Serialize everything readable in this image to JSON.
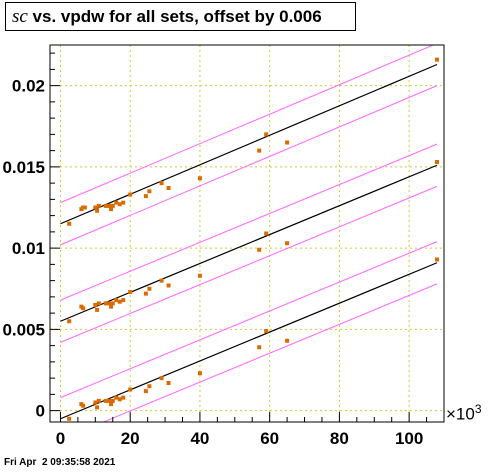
{
  "title": {
    "symbol": "sc",
    "rest": " vs. vpdw for all sets, offset by 0.006"
  },
  "footer": "Fri Apr  2 09:35:58 2021",
  "x_axis_multiplier_base": "×10",
  "x_axis_multiplier_exp": "3",
  "colors": {
    "points": "#d96b00",
    "fit": "#000000",
    "band": "#ff66ff",
    "grid": "#cccc33"
  },
  "chart_data": {
    "type": "scatter",
    "title": "sc vs. vpdw for all sets, offset by 0.006",
    "xlabel": "",
    "ylabel": "",
    "xlim": [
      -3,
      110
    ],
    "ylim": [
      -0.0007,
      0.0225
    ],
    "x_ticks": [
      0,
      20,
      40,
      60,
      80,
      100
    ],
    "x_tick_labels": [
      "0",
      "20",
      "40",
      "60",
      "80",
      "100"
    ],
    "y_ticks": [
      0,
      0.005,
      0.01,
      0.015,
      0.02
    ],
    "y_tick_labels": [
      "0",
      "0.005",
      "0.01",
      "0.015",
      "0.02"
    ],
    "grid": true,
    "x_multiplier": "×10^3",
    "series": [
      {
        "offset": 0,
        "points": [
          [
            2.5,
            -0.0005
          ],
          [
            6,
            0.0004
          ],
          [
            6.5,
            0.0003
          ],
          [
            10,
            0.0005
          ],
          [
            10.5,
            0.0002
          ],
          [
            11,
            0.0006
          ],
          [
            13,
            0.0006
          ],
          [
            14,
            0.0006
          ],
          [
            14.5,
            0.0004
          ],
          [
            15,
            0.0006
          ],
          [
            16,
            0.0008
          ],
          [
            17,
            0.0007
          ],
          [
            18,
            0.0008
          ],
          [
            20,
            0.0013
          ],
          [
            24.5,
            0.0012
          ],
          [
            25.5,
            0.0015
          ],
          [
            29,
            0.002
          ],
          [
            31,
            0.0017
          ],
          [
            40,
            0.0023
          ],
          [
            57,
            0.0039
          ],
          [
            59,
            0.0049
          ],
          [
            65,
            0.0043
          ],
          [
            108,
            0.0093
          ]
        ],
        "fit": {
          "x0": 0,
          "y0": -0.0005,
          "x1": 108,
          "y1": 0.0091
        },
        "band_upper": {
          "x0": 0,
          "y0": 0.0008,
          "x1": 108,
          "y1": 0.0104
        },
        "band_lower": {
          "x0": 0,
          "y0": -0.0018,
          "x1": 108,
          "y1": 0.0078
        }
      },
      {
        "offset": 0.006,
        "points": [
          [
            2.5,
            0.0055
          ],
          [
            6,
            0.0064
          ],
          [
            6.5,
            0.0063
          ],
          [
            10,
            0.0065
          ],
          [
            10.5,
            0.0062
          ],
          [
            11,
            0.0066
          ],
          [
            13,
            0.0066
          ],
          [
            14,
            0.0066
          ],
          [
            14.5,
            0.0064
          ],
          [
            15,
            0.0066
          ],
          [
            16,
            0.0068
          ],
          [
            17,
            0.0067
          ],
          [
            18,
            0.0068
          ],
          [
            20,
            0.0073
          ],
          [
            24.5,
            0.0072
          ],
          [
            25.5,
            0.0075
          ],
          [
            29,
            0.008
          ],
          [
            31,
            0.0077
          ],
          [
            40,
            0.0083
          ],
          [
            57,
            0.0099
          ],
          [
            59,
            0.0109
          ],
          [
            65,
            0.0103
          ],
          [
            108,
            0.0153
          ]
        ],
        "fit": {
          "x0": 0,
          "y0": 0.0055,
          "x1": 108,
          "y1": 0.0151
        },
        "band_upper": {
          "x0": 0,
          "y0": 0.0068,
          "x1": 108,
          "y1": 0.0164
        },
        "band_lower": {
          "x0": 0,
          "y0": 0.0042,
          "x1": 108,
          "y1": 0.0138
        }
      },
      {
        "offset": 0.012,
        "points": [
          [
            2.5,
            0.0115
          ],
          [
            6,
            0.0124
          ],
          [
            6.5,
            0.0125
          ],
          [
            7,
            0.0125
          ],
          [
            10,
            0.0125
          ],
          [
            10.5,
            0.0123
          ],
          [
            11,
            0.0126
          ],
          [
            13,
            0.0126
          ],
          [
            14,
            0.0126
          ],
          [
            14.5,
            0.0124
          ],
          [
            15,
            0.0126
          ],
          [
            16,
            0.0128
          ],
          [
            17,
            0.0127
          ],
          [
            18,
            0.0128
          ],
          [
            20,
            0.0133
          ],
          [
            24.5,
            0.0132
          ],
          [
            25.5,
            0.0135
          ],
          [
            29,
            0.014
          ],
          [
            31,
            0.0137
          ],
          [
            40,
            0.0143
          ],
          [
            57,
            0.016
          ],
          [
            59,
            0.017
          ],
          [
            65,
            0.0165
          ],
          [
            108,
            0.0216
          ]
        ],
        "fit": {
          "x0": 0,
          "y0": 0.0115,
          "x1": 108,
          "y1": 0.0213
        },
        "band_upper": {
          "x0": 0,
          "y0": 0.0128,
          "x1": 108,
          "y1": 0.0226
        },
        "band_lower": {
          "x0": 0,
          "y0": 0.0102,
          "x1": 108,
          "y1": 0.02
        }
      }
    ]
  }
}
